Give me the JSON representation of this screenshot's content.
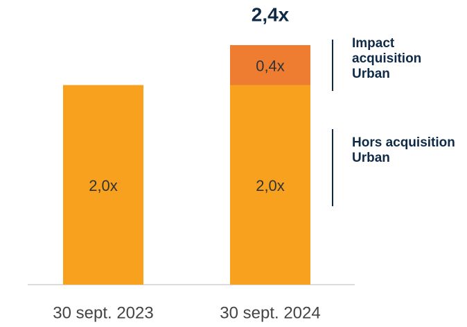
{
  "chart_data": {
    "type": "bar",
    "stacked": true,
    "categories": [
      "30 sept. 2023",
      "30 sept. 2024"
    ],
    "series": [
      {
        "name": "Hors acquisition Urban",
        "color": "#f8a11f",
        "values": [
          2.0,
          2.0
        ],
        "value_labels": [
          "2,0x",
          "2,0x"
        ]
      },
      {
        "name": "Impact acquisition Urban",
        "color": "#ee7d31",
        "values": [
          null,
          0.4
        ],
        "value_labels": [
          null,
          "0,4x"
        ]
      }
    ],
    "totals": {
      "values": [
        null,
        2.4
      ],
      "labels": [
        null,
        "2,4x"
      ]
    }
  }
}
